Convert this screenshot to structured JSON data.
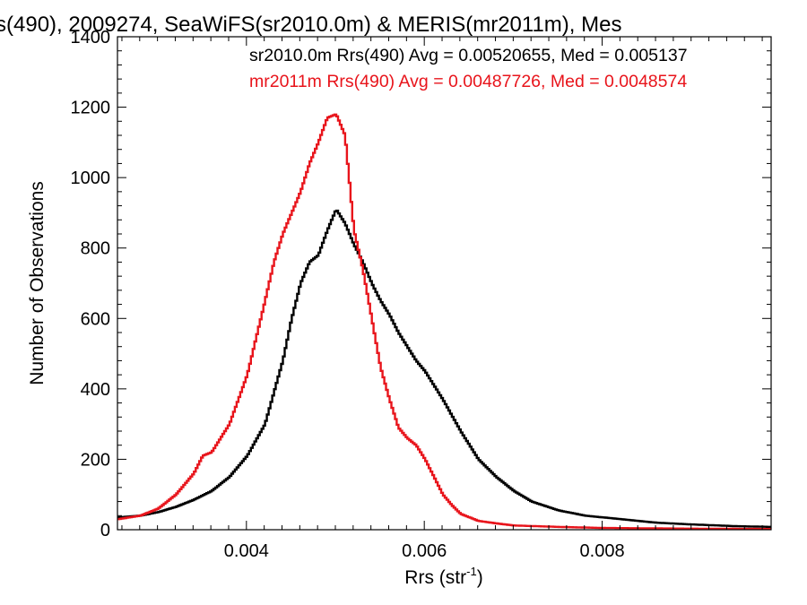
{
  "chart_data": {
    "type": "line",
    "title": "s(490), 2009274, SeaWiFS(sr2010.0m) & MERIS(mr2011m), Mes",
    "xlabel": "Rrs (str",
    "xlabel_sup": "-1",
    "xlabel_end": ")",
    "ylabel": "Number of Observations",
    "xlim": [
      0.00255,
      0.0099
    ],
    "ylim": [
      0,
      1400
    ],
    "xticks": [
      0.004,
      0.006,
      0.008
    ],
    "xtick_labels": [
      "0.004",
      "0.006",
      "0.008"
    ],
    "yticks": [
      0,
      200,
      400,
      600,
      800,
      1000,
      1200,
      1400
    ],
    "ytick_labels": [
      "0",
      "200",
      "400",
      "600",
      "800",
      "1000",
      "1200",
      "1400"
    ],
    "grid": false,
    "legend_placement": "top-right",
    "series": [
      {
        "name": "sr2010.0m",
        "legend": "sr2010.0m Rrs(490) Avg = 0.00520655, Med = 0.005137",
        "color": "#000000",
        "x": [
          0.00255,
          0.0028,
          0.003,
          0.0032,
          0.0034,
          0.0036,
          0.0038,
          0.004,
          0.0042,
          0.0044,
          0.0045,
          0.0046,
          0.0047,
          0.0048,
          0.0049,
          0.005,
          0.0051,
          0.0052,
          0.0053,
          0.0054,
          0.0055,
          0.0056,
          0.0057,
          0.0058,
          0.0059,
          0.006,
          0.0061,
          0.0062,
          0.0064,
          0.0066,
          0.0068,
          0.007,
          0.0072,
          0.0075,
          0.0078,
          0.0082,
          0.0086,
          0.009,
          0.0095,
          0.0099
        ],
        "y": [
          35,
          40,
          50,
          65,
          85,
          110,
          150,
          210,
          300,
          480,
          600,
          700,
          760,
          780,
          850,
          910,
          870,
          810,
          760,
          700,
          650,
          610,
          560,
          520,
          480,
          450,
          410,
          370,
          280,
          200,
          150,
          110,
          80,
          55,
          40,
          30,
          20,
          15,
          10,
          8
        ]
      },
      {
        "name": "mr2011m",
        "legend": "mr2011m Rrs(490) Avg = 0.00487726, Med = 0.0048574",
        "color": "#e8141b",
        "x": [
          0.00255,
          0.0028,
          0.003,
          0.0032,
          0.0034,
          0.0035,
          0.0036,
          0.0038,
          0.004,
          0.0042,
          0.0043,
          0.0044,
          0.0045,
          0.0046,
          0.0047,
          0.0048,
          0.0049,
          0.005,
          0.0051,
          0.0052,
          0.0053,
          0.0054,
          0.0055,
          0.0056,
          0.0057,
          0.0058,
          0.0059,
          0.006,
          0.0061,
          0.0062,
          0.0063,
          0.0064,
          0.0066,
          0.0068,
          0.007,
          0.0075,
          0.008,
          0.0085,
          0.009,
          0.0099
        ],
        "y": [
          30,
          40,
          60,
          100,
          160,
          210,
          220,
          300,
          440,
          650,
          760,
          840,
          900,
          960,
          1040,
          1100,
          1170,
          1180,
          1120,
          850,
          740,
          600,
          460,
          370,
          290,
          260,
          240,
          200,
          150,
          100,
          70,
          45,
          25,
          18,
          12,
          8,
          5,
          4,
          3,
          2
        ]
      }
    ]
  }
}
